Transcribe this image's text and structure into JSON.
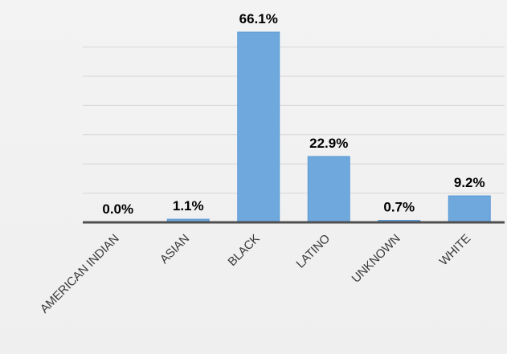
{
  "chart_data": {
    "type": "bar",
    "categories": [
      "AMERICAN INDIAN",
      "ASIAN",
      "BLACK",
      "LATINO",
      "UNKNOWN",
      "WHITE"
    ],
    "values": [
      0.0,
      1.1,
      66.1,
      22.9,
      0.7,
      9.2
    ],
    "data_labels": [
      "0.0%",
      "1.1%",
      "66.1%",
      "22.9%",
      "0.7%",
      "9.2%"
    ],
    "title": "",
    "xlabel": "",
    "ylabel": "",
    "ylim": [
      0,
      70
    ],
    "grid": true,
    "legend": "none",
    "bar_color": "#6fa8dc",
    "axis_color": "#4f4f4f",
    "grid_color": "#d6d6d6",
    "background_color": "#f2f2f2"
  }
}
